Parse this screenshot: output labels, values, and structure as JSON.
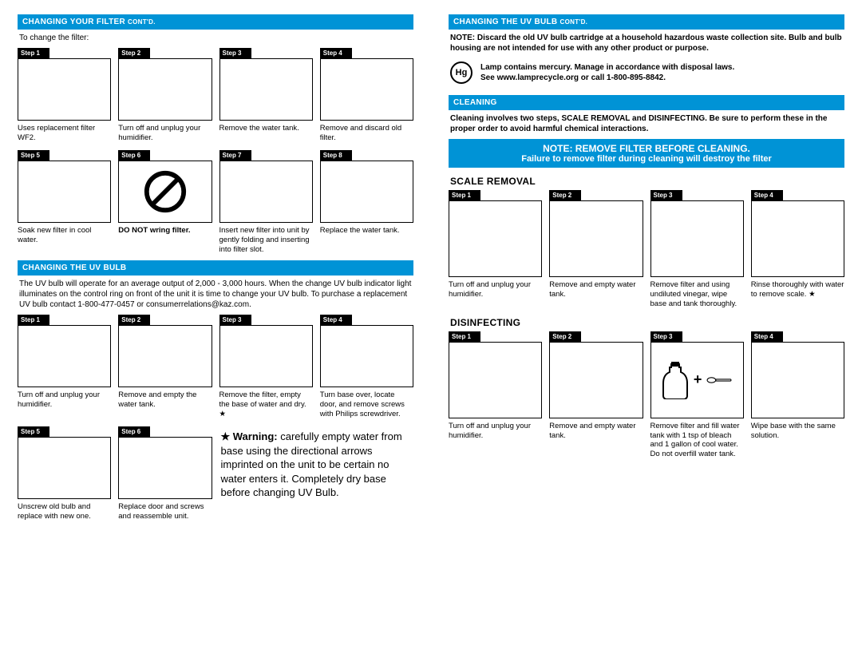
{
  "colors": {
    "accent": "#0093d6",
    "black": "#000000",
    "white": "#ffffff"
  },
  "left": {
    "filter": {
      "header_main": "CHANGING YOUR FILTER ",
      "header_sub": "CONT'D.",
      "intro": "To change the filter:",
      "steps": [
        {
          "label": "Step 1",
          "caption": "Uses replacement filter WF2."
        },
        {
          "label": "Step 2",
          "caption": "Turn off and unplug your humidifier."
        },
        {
          "label": "Step 3",
          "caption": "Remove the water tank."
        },
        {
          "label": "Step 4",
          "caption": "Remove and discard old filter."
        },
        {
          "label": "Step 5",
          "caption": "Soak new filter in cool water."
        },
        {
          "label": "Step 6",
          "caption": "DO NOT wring filter.",
          "icon": "prohibit",
          "bold": true
        },
        {
          "label": "Step 7",
          "caption": "Insert new filter into unit by gently folding and inserting into filter slot."
        },
        {
          "label": "Step 8",
          "caption": "Replace the water tank."
        }
      ]
    },
    "uvbulb": {
      "header": "CHANGING THE UV BULB",
      "intro": "The UV bulb will operate for an average output of 2,000 - 3,000 hours. When the change UV bulb indicator light illuminates on the control ring on front of the unit it is time to change your UV  bulb. To purchase a replacement UV bulb contact 1-800-477-0457 or consumerrelations@kaz.com.",
      "steps": [
        {
          "label": "Step 1",
          "caption": "Turn off and unplug your humidifier."
        },
        {
          "label": "Step 2",
          "caption": "Remove and empty the water tank."
        },
        {
          "label": "Step 3",
          "caption": "Remove the filter, empty the base of water and dry. ★"
        },
        {
          "label": "Step 4",
          "caption": "Turn base over, locate door, and remove screws with Philips screwdriver."
        },
        {
          "label": "Step 5",
          "caption": "Unscrew old bulb and replace with new one."
        },
        {
          "label": "Step 6",
          "caption": "Replace door and screws and reassemble unit."
        }
      ],
      "warning_bold": "★ Warning:",
      "warning_text": " carefully empty water from base using the directional arrows imprinted on the unit to be certain no water enters it. Completely dry base before changing UV Bulb."
    }
  },
  "right": {
    "uvbulb2": {
      "header_main": "CHANGING THE UV BULB ",
      "header_sub": "CONT'D.",
      "note": "NOTE: Discard the old UV bulb cartridge at a household hazardous waste collection site. Bulb and bulb housing are not intended for use with any other product or purpose.",
      "hg_badge": "Hg",
      "hg_line1": "Lamp contains mercury. Manage in accordance with disposal laws.",
      "hg_line2": "See www.lamprecycle.org or call 1-800-895-8842."
    },
    "cleaning": {
      "header": "CLEANING",
      "intro": "Cleaning involves two steps, SCALE REMOVAL and DISINFECTING. Be sure to perform these in the proper order to avoid harmful chemical interactions.",
      "band_t1": "NOTE: REMOVE FILTER BEFORE CLEANING.",
      "band_t2": "Failure to remove filter during cleaning will destroy the filter"
    },
    "scale": {
      "header": "SCALE REMOVAL",
      "steps": [
        {
          "label": "Step 1",
          "caption": "Turn off and unplug your humidifier."
        },
        {
          "label": "Step 2",
          "caption": "Remove and empty water tank."
        },
        {
          "label": "Step 3",
          "caption": "Remove filter and using undiluted vinegar, wipe base and tank thoroughly."
        },
        {
          "label": "Step 4",
          "caption": "Rinse thoroughly with water to remove scale. ★"
        }
      ]
    },
    "disinfect": {
      "header": "DISINFECTING",
      "steps": [
        {
          "label": "Step 1",
          "caption": "Turn off and unplug your humidifier."
        },
        {
          "label": "Step 2",
          "caption": "Remove and empty water tank."
        },
        {
          "label": "Step 3",
          "caption": "Remove filter and fill water tank with 1 tsp of bleach and 1 gallon of cool water. Do not overfill water tank.",
          "icon": "bleach"
        },
        {
          "label": "Step 4",
          "caption": "Wipe base with the same solution."
        }
      ]
    }
  }
}
